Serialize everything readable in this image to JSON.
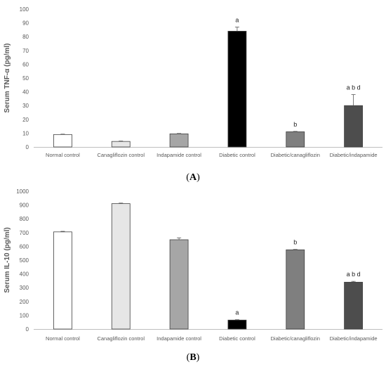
{
  "chart_data": [
    {
      "type": "bar",
      "panel_label_open": "(",
      "panel_label": "A",
      "panel_label_close": ")",
      "ylabel": "Serum TNF-α (pg/ml)",
      "ylim": [
        0,
        100
      ],
      "yticks": [
        0,
        10,
        20,
        30,
        40,
        50,
        60,
        70,
        80,
        90,
        100
      ],
      "categories": [
        "Normal control",
        "Canagliflozin control",
        "Indapamide control",
        "Diabetic control",
        "Diabetic/canagliflozin",
        "Diabetic/indapamide"
      ],
      "values": [
        9,
        4,
        9.5,
        84,
        11,
        30
      ],
      "errors": [
        0.3,
        0.3,
        0.3,
        3,
        0.3,
        8
      ],
      "annotations": [
        "",
        "",
        "",
        "a",
        "b",
        "a b d"
      ],
      "colors": [
        "#ffffff",
        "#e6e6e6",
        "#a6a6a6",
        "#000000",
        "#7f7f7f",
        "#4d4d4d"
      ],
      "grid": false
    },
    {
      "type": "bar",
      "panel_label_open": "(",
      "panel_label": "B",
      "panel_label_close": ")",
      "ylabel": "Serum IL-10 (pg/ml)",
      "ylim": [
        0,
        1000
      ],
      "yticks": [
        0,
        100,
        200,
        300,
        400,
        500,
        600,
        700,
        800,
        900,
        1000
      ],
      "categories": [
        "Normal control",
        "Canagliflozin control",
        "Indapamide control",
        "Diabetic control",
        "Diabetic/canagliflozin",
        "Diabetic/indapamide"
      ],
      "values": [
        705,
        910,
        648,
        65,
        575,
        340
      ],
      "errors": [
        4,
        4,
        14,
        3,
        3,
        6
      ],
      "annotations": [
        "",
        "",
        "",
        "a",
        "b",
        "a b d"
      ],
      "colors": [
        "#ffffff",
        "#e6e6e6",
        "#a6a6a6",
        "#000000",
        "#7f7f7f",
        "#4d4d4d"
      ],
      "grid": false
    }
  ]
}
